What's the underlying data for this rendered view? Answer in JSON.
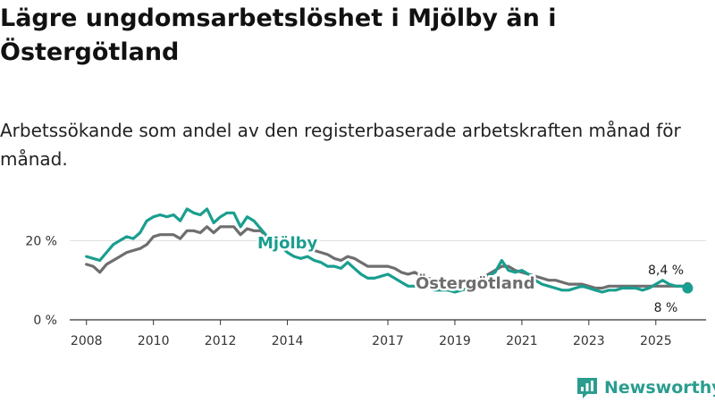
{
  "chart_data": {
    "type": "line",
    "title": "Lägre ungdomsarbetslöshet i Mjölby än i Östergötland",
    "subtitle": "Arbetssökande som andel av den registerbaserade arbetskraften månad för månad.",
    "xlabel": "",
    "ylabel": "",
    "ylim": [
      0,
      30
    ],
    "xlim": [
      2007.5,
      2026.5
    ],
    "grid": "horizontal",
    "y_ticks": [
      {
        "value": 0,
        "label": "0 %"
      },
      {
        "value": 20,
        "label": "20 %"
      }
    ],
    "x_ticks": [
      {
        "value": 2008,
        "label": "2008"
      },
      {
        "value": 2010,
        "label": "2010"
      },
      {
        "value": 2012,
        "label": "2012"
      },
      {
        "value": 2014,
        "label": "2014"
      },
      {
        "value": 2017,
        "label": "2017"
      },
      {
        "value": 2019,
        "label": "2019"
      },
      {
        "value": 2021,
        "label": "2021"
      },
      {
        "value": 2023,
        "label": "2023"
      },
      {
        "value": 2025,
        "label": "2025"
      }
    ],
    "series": [
      {
        "name": "Östergötland",
        "label": "Östergötland",
        "end_label": "8,4 %",
        "color": "#6e6e6e",
        "x": [
          2008.0,
          2008.2,
          2008.4,
          2008.6,
          2008.8,
          2009.0,
          2009.2,
          2009.4,
          2009.6,
          2009.8,
          2010.0,
          2010.2,
          2010.4,
          2010.6,
          2010.8,
          2011.0,
          2011.2,
          2011.4,
          2011.6,
          2011.8,
          2012.0,
          2012.2,
          2012.4,
          2012.6,
          2012.8,
          2013.0,
          2013.2,
          2013.4,
          2013.6,
          2013.8,
          2014.0,
          2014.2,
          2014.4,
          2014.6,
          2014.8,
          2015.0,
          2015.2,
          2015.4,
          2015.6,
          2015.8,
          2016.0,
          2016.2,
          2016.4,
          2016.6,
          2016.8,
          2017.0,
          2017.2,
          2017.4,
          2017.6,
          2017.8,
          2018.0,
          2018.2,
          2018.4,
          2018.6,
          2018.8,
          2019.0,
          2019.2,
          2019.4,
          2019.6,
          2019.8,
          2020.0,
          2020.2,
          2020.4,
          2020.6,
          2020.8,
          2021.0,
          2021.2,
          2021.4,
          2021.6,
          2021.8,
          2022.0,
          2022.2,
          2022.4,
          2022.6,
          2022.8,
          2023.0,
          2023.2,
          2023.4,
          2023.6,
          2023.8,
          2024.0,
          2024.2,
          2024.4,
          2024.6,
          2024.8,
          2025.0,
          2025.2,
          2025.4,
          2025.6,
          2025.8,
          2025.95
        ],
        "values": [
          14.0,
          13.5,
          12.0,
          14.0,
          15.0,
          16.0,
          17.0,
          17.5,
          18.0,
          19.0,
          21.0,
          21.5,
          21.5,
          21.5,
          20.5,
          22.5,
          22.5,
          22.0,
          23.5,
          22.0,
          23.5,
          23.5,
          23.5,
          21.5,
          23.0,
          22.5,
          22.5,
          21.0,
          20.5,
          19.5,
          19.5,
          18.5,
          18.0,
          18.0,
          17.5,
          17.0,
          16.5,
          15.5,
          15.0,
          16.0,
          15.5,
          14.5,
          13.5,
          13.5,
          13.5,
          13.5,
          13.0,
          12.0,
          11.5,
          12.0,
          11.0,
          10.5,
          10.0,
          10.0,
          9.5,
          9.5,
          9.5,
          10.0,
          10.0,
          10.5,
          11.5,
          12.5,
          13.5,
          13.5,
          12.5,
          12.0,
          11.5,
          11.0,
          10.5,
          10.0,
          10.0,
          9.5,
          9.0,
          9.0,
          9.0,
          8.5,
          8.0,
          8.0,
          8.5,
          8.5,
          8.5,
          8.5,
          8.5,
          8.5,
          8.5,
          8.5,
          8.5,
          8.5,
          8.5,
          8.5,
          8.4
        ]
      },
      {
        "name": "Mjölby",
        "label": "Mjölby",
        "end_label": "8 %",
        "color": "#1a9e8f",
        "x": [
          2008.0,
          2008.2,
          2008.4,
          2008.6,
          2008.8,
          2009.0,
          2009.2,
          2009.4,
          2009.6,
          2009.8,
          2010.0,
          2010.2,
          2010.4,
          2010.6,
          2010.8,
          2011.0,
          2011.2,
          2011.4,
          2011.6,
          2011.8,
          2012.0,
          2012.2,
          2012.4,
          2012.6,
          2012.8,
          2013.0,
          2013.2,
          2013.4,
          2013.6,
          2013.8,
          2014.0,
          2014.2,
          2014.4,
          2014.6,
          2014.8,
          2015.0,
          2015.2,
          2015.4,
          2015.6,
          2015.8,
          2016.0,
          2016.2,
          2016.4,
          2016.6,
          2016.8,
          2017.0,
          2017.2,
          2017.4,
          2017.6,
          2017.8,
          2018.0,
          2018.2,
          2018.4,
          2018.6,
          2018.8,
          2019.0,
          2019.2,
          2019.4,
          2019.6,
          2019.8,
          2020.0,
          2020.2,
          2020.4,
          2020.6,
          2020.8,
          2021.0,
          2021.2,
          2021.4,
          2021.6,
          2021.8,
          2022.0,
          2022.2,
          2022.4,
          2022.6,
          2022.8,
          2023.0,
          2023.2,
          2023.4,
          2023.6,
          2023.8,
          2024.0,
          2024.2,
          2024.4,
          2024.6,
          2024.8,
          2025.0,
          2025.2,
          2025.4,
          2025.6,
          2025.8,
          2025.95
        ],
        "values": [
          16.0,
          15.5,
          15.0,
          17.0,
          19.0,
          20.0,
          21.0,
          20.5,
          22.0,
          25.0,
          26.0,
          26.5,
          26.0,
          26.5,
          25.0,
          28.0,
          27.0,
          26.5,
          28.0,
          24.5,
          26.0,
          27.0,
          27.0,
          23.5,
          26.0,
          25.0,
          23.0,
          21.0,
          19.5,
          18.5,
          17.0,
          16.0,
          15.5,
          16.0,
          15.0,
          14.5,
          13.5,
          13.5,
          13.0,
          14.5,
          13.0,
          11.5,
          10.5,
          10.5,
          11.0,
          11.5,
          10.5,
          9.5,
          8.5,
          8.5,
          8.5,
          8.0,
          7.5,
          7.5,
          7.5,
          7.0,
          7.5,
          8.0,
          9.0,
          10.0,
          11.0,
          12.0,
          15.0,
          12.5,
          12.0,
          12.5,
          11.5,
          10.0,
          9.0,
          8.5,
          8.0,
          7.5,
          7.5,
          8.0,
          8.5,
          8.0,
          7.5,
          7.0,
          7.5,
          7.5,
          8.0,
          8.0,
          8.0,
          7.5,
          8.0,
          9.0,
          10.0,
          9.0,
          8.5,
          8.5,
          8.0
        ]
      }
    ]
  },
  "brand": {
    "name": "Newsworthy",
    "logo_icon": "bar-chart-logo-icon",
    "color": "#2a9d8f"
  }
}
